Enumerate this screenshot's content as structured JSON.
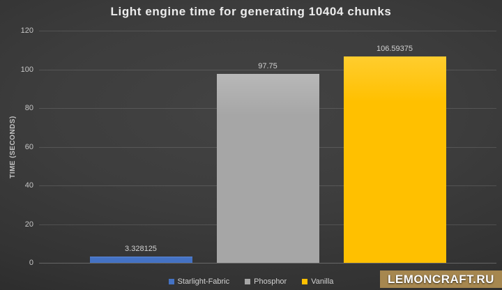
{
  "title": "Light engine time for generating 10404 chunks",
  "y_axis": {
    "label": "TIME (SECONDS)",
    "ticks": [
      "120",
      "100",
      "80",
      "60",
      "40",
      "20",
      "0"
    ]
  },
  "chart_data": {
    "type": "bar",
    "title": "Light engine time for generating 10404 chunks",
    "categories": [
      "Starlight-Fabric",
      "Phosphor",
      "Vanilla"
    ],
    "values": [
      3.328125,
      97.75,
      106.59375
    ],
    "value_labels": [
      "3.328125",
      "97.75",
      "106.59375"
    ],
    "colors": [
      "#4472c4",
      "#a6a6a6",
      "#ffc000"
    ],
    "bar_highlight_colors": [
      "#5c86d4",
      "#b8b8b8",
      "#ffcd2e"
    ],
    "xlabel": "",
    "ylabel": "TIME (SECONDS)",
    "ylim": [
      0,
      120
    ],
    "grid": true,
    "legend_position": "bottom"
  },
  "legend": {
    "items": [
      {
        "label": "Starlight-Fabric",
        "color": "#4472c4"
      },
      {
        "label": "Phosphor",
        "color": "#a6a6a6"
      },
      {
        "label": "Vanilla",
        "color": "#ffc000"
      }
    ]
  },
  "watermark": {
    "text": "LEMONCRAFT.RU",
    "background": "#a6874f",
    "text_color": "#ffffff"
  }
}
